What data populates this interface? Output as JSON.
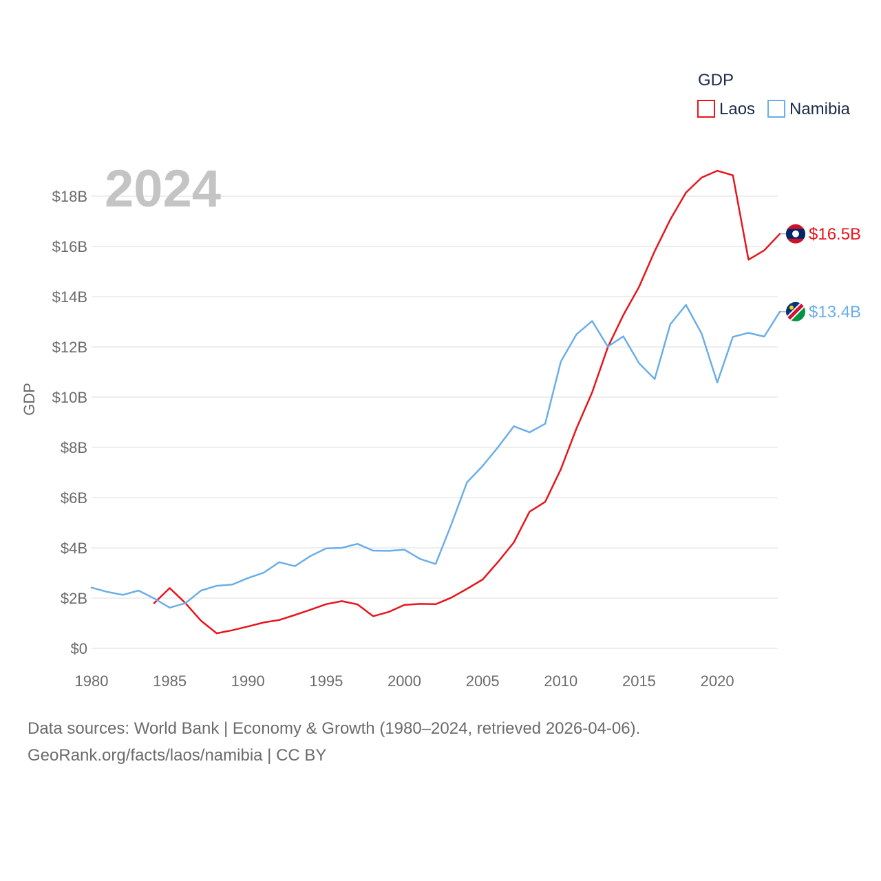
{
  "chart_data": {
    "type": "line",
    "title": "GDP",
    "year_label": "2024",
    "ylabel": "GDP",
    "xlabel": "",
    "xlim": [
      1980,
      2024
    ],
    "ylim": [
      0,
      19.5
    ],
    "y_ticks": [
      {
        "value": 0,
        "label": "$0"
      },
      {
        "value": 2,
        "label": "$2B"
      },
      {
        "value": 4,
        "label": "$4B"
      },
      {
        "value": 6,
        "label": "$6B"
      },
      {
        "value": 8,
        "label": "$8B"
      },
      {
        "value": 10,
        "label": "$10B"
      },
      {
        "value": 12,
        "label": "$12B"
      },
      {
        "value": 14,
        "label": "$14B"
      },
      {
        "value": 16,
        "label": "$16B"
      },
      {
        "value": 18,
        "label": "$18B"
      }
    ],
    "x_ticks": [
      {
        "value": 1980,
        "label": "1980"
      },
      {
        "value": 1985,
        "label": "1985"
      },
      {
        "value": 1990,
        "label": "1990"
      },
      {
        "value": 1995,
        "label": "1995"
      },
      {
        "value": 2000,
        "label": "2000"
      },
      {
        "value": 2005,
        "label": "2005"
      },
      {
        "value": 2010,
        "label": "2010"
      },
      {
        "value": 2015,
        "label": "2015"
      },
      {
        "value": 2020,
        "label": "2020"
      }
    ],
    "legend_position": "top-right",
    "series": [
      {
        "name": "Laos",
        "color": "#e8141b",
        "end_label": "$16.5B",
        "flag": "laos-flag-icon",
        "x": [
          1984,
          1985,
          1986,
          1987,
          1988,
          1989,
          1990,
          1991,
          1992,
          1993,
          1994,
          1995,
          1996,
          1997,
          1998,
          1999,
          2000,
          2001,
          2002,
          2003,
          2004,
          2005,
          2006,
          2007,
          2008,
          2009,
          2010,
          2011,
          2012,
          2013,
          2014,
          2015,
          2016,
          2017,
          2018,
          2019,
          2020,
          2021,
          2022,
          2023,
          2024
        ],
        "values": [
          1.8,
          2.4,
          1.8,
          1.1,
          0.6,
          0.72,
          0.87,
          1.03,
          1.13,
          1.33,
          1.54,
          1.76,
          1.88,
          1.75,
          1.28,
          1.45,
          1.73,
          1.77,
          1.76,
          2.02,
          2.37,
          2.74,
          3.45,
          4.22,
          5.44,
          5.83,
          7.13,
          8.75,
          10.19,
          11.98,
          13.27,
          14.39,
          15.81,
          17.07,
          18.14,
          18.74,
          19.01,
          18.83,
          15.47,
          15.84,
          16.5
        ]
      },
      {
        "name": "Namibia",
        "color": "#6aaee8",
        "end_label": "$13.4B",
        "flag": "namibia-flag-icon",
        "x": [
          1980,
          1981,
          1982,
          1983,
          1984,
          1985,
          1986,
          1987,
          1988,
          1989,
          1990,
          1991,
          1992,
          1993,
          1994,
          1995,
          1996,
          1997,
          1998,
          1999,
          2000,
          2001,
          2002,
          2003,
          2004,
          2005,
          2006,
          2007,
          2008,
          2009,
          2010,
          2011,
          2012,
          2013,
          2014,
          2015,
          2016,
          2017,
          2018,
          2019,
          2020,
          2021,
          2022,
          2023,
          2024
        ],
        "values": [
          2.42,
          2.25,
          2.13,
          2.3,
          1.99,
          1.62,
          1.8,
          2.3,
          2.49,
          2.54,
          2.8,
          3.01,
          3.43,
          3.27,
          3.68,
          3.98,
          4.0,
          4.16,
          3.89,
          3.88,
          3.93,
          3.56,
          3.36,
          4.93,
          6.61,
          7.26,
          8.02,
          8.84,
          8.6,
          8.94,
          11.41,
          12.5,
          13.03,
          12.01,
          12.42,
          11.35,
          10.72,
          12.9,
          13.67,
          12.53,
          10.58,
          12.4,
          12.56,
          12.41,
          13.4
        ]
      }
    ]
  },
  "footer": {
    "line1": "Data sources: World Bank | Economy & Growth (1980–2024, retrieved 2026-04-06).",
    "line2": "GeoRank.org/facts/laos/namibia | CC BY"
  }
}
